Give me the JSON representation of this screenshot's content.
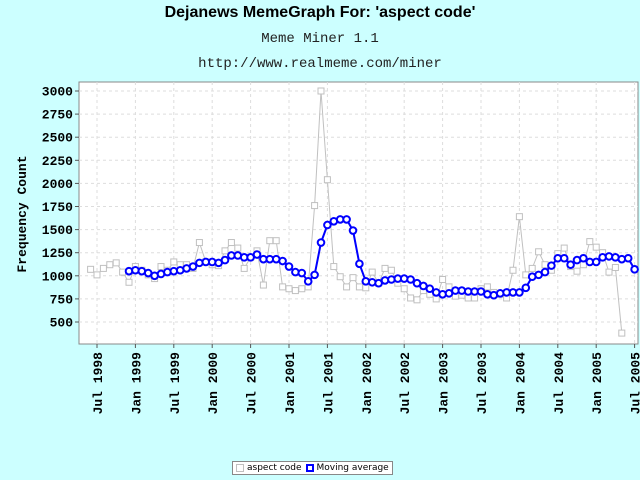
{
  "title": "Dejanews MemeGraph For: 'aspect code'",
  "subtitle": "Meme Miner 1.1",
  "url": "http://www.realmeme.com/miner",
  "colors": {
    "background": "#ccffff",
    "plot_bg": "#ffffff",
    "raw": "#c0c0c0",
    "average": "#0000ff"
  },
  "chart_data": {
    "type": "line",
    "title": "Dejanews MemeGraph For: 'aspect code'",
    "xlabel": "",
    "ylabel": "Frequency Count",
    "ylim": [
      250,
      3100
    ],
    "yticks": [
      500,
      750,
      1000,
      1250,
      1500,
      1750,
      2000,
      2250,
      2500,
      2750,
      3000
    ],
    "xticks": [
      "Jul 1998",
      "Jan 1999",
      "Jul 1999",
      "Jan 2000",
      "Jul 2000",
      "Jan 2001",
      "Jul 2001",
      "Jan 2002",
      "Jul 2002",
      "Jan 2003",
      "Jul 2003",
      "Jan 2004",
      "Jul 2004",
      "Jan 2005",
      "Jul 2005"
    ],
    "grid": true,
    "legend_position": "bottom",
    "series": [
      {
        "name": "aspect code",
        "x_start": "1998-06",
        "values": [
          1070,
          1010,
          1080,
          1120,
          1140,
          1040,
          930,
          1100,
          1060,
          1010,
          970,
          1100,
          1060,
          1150,
          1120,
          1120,
          1080,
          1360,
          1150,
          1120,
          1110,
          1270,
          1360,
          1300,
          1080,
          1200,
          1270,
          900,
          1380,
          1380,
          880,
          860,
          840,
          860,
          880,
          1760,
          3000,
          2040,
          1100,
          990,
          880,
          980,
          880,
          870,
          1040,
          920,
          1080,
          1060,
          920,
          860,
          760,
          740,
          840,
          800,
          750,
          960,
          880,
          780,
          790,
          760,
          760,
          860,
          880,
          820,
          800,
          760,
          1060,
          1640,
          1010,
          1080,
          1260,
          1120,
          1060,
          1240,
          1300,
          1100,
          1050,
          1120,
          1370,
          1310,
          1250,
          1040,
          1090,
          380
        ]
      },
      {
        "name": "Moving average",
        "x_start": "1998-12",
        "values": [
          1050,
          1060,
          1050,
          1030,
          1000,
          1020,
          1040,
          1050,
          1060,
          1080,
          1100,
          1140,
          1150,
          1150,
          1140,
          1170,
          1220,
          1220,
          1200,
          1200,
          1230,
          1180,
          1180,
          1180,
          1160,
          1100,
          1040,
          1030,
          940,
          1010,
          1360,
          1550,
          1590,
          1610,
          1610,
          1490,
          1130,
          940,
          930,
          920,
          950,
          960,
          970,
          970,
          960,
          920,
          890,
          860,
          820,
          800,
          810,
          840,
          840,
          830,
          830,
          830,
          800,
          790,
          810,
          820,
          820,
          820,
          870,
          990,
          1010,
          1040,
          1110,
          1190,
          1190,
          1120,
          1170,
          1190,
          1150,
          1150,
          1200,
          1210,
          1200,
          1180,
          1190,
          1070
        ]
      }
    ]
  }
}
